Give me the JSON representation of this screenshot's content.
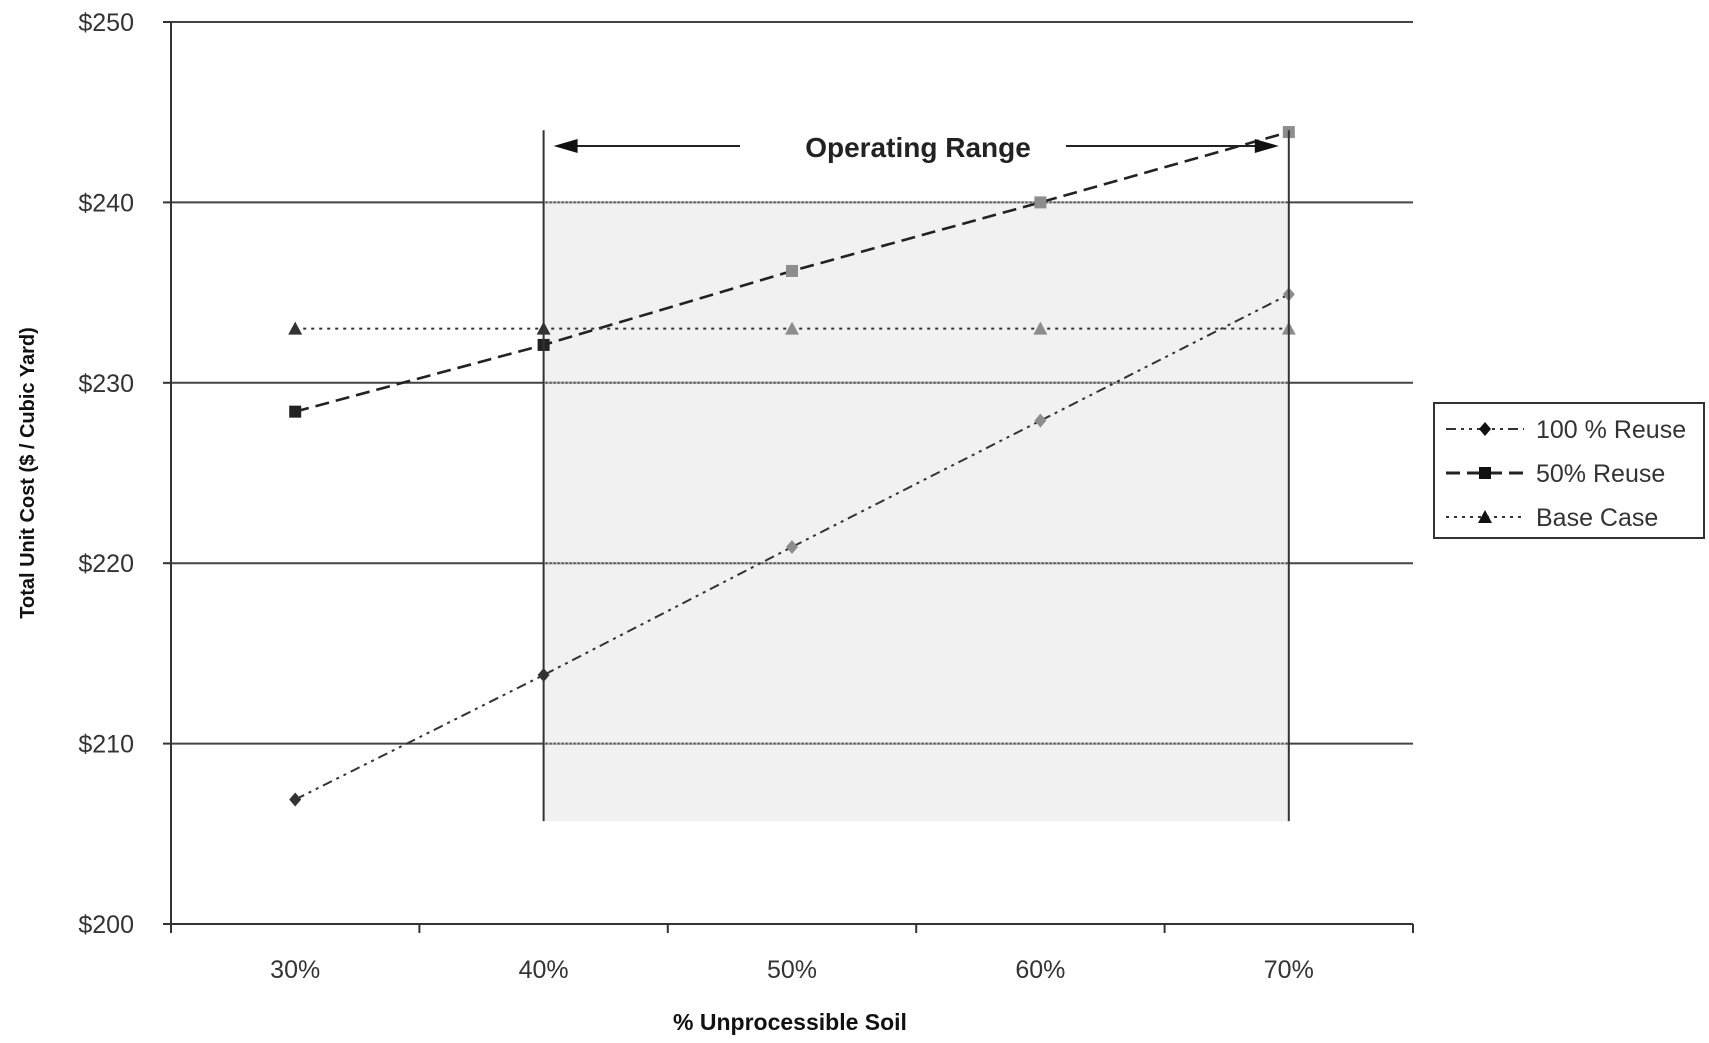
{
  "chart_data": {
    "type": "line",
    "title": "",
    "xlabel": "% Unprocessible Soil",
    "ylabel": "Total Unit Cost ($ / Cubic Yard)",
    "x": [
      30,
      40,
      50,
      60,
      70
    ],
    "x_tick_labels": [
      "30%",
      "40%",
      "50%",
      "60%",
      "70%"
    ],
    "xlim": [
      25,
      75
    ],
    "y_tick_values": [
      200,
      210,
      220,
      230,
      240,
      250
    ],
    "y_tick_labels": [
      "$200",
      "$210",
      "$220",
      "$230",
      "$240",
      "$250"
    ],
    "ylim": [
      200,
      250
    ],
    "grid": true,
    "legend_position": "right",
    "series": [
      {
        "name": "100 % Reuse",
        "values": [
          206.9,
          213.8,
          220.9,
          227.9,
          234.9
        ],
        "marker": "diamond",
        "dash": "dash-dot-dot",
        "color": "#333333"
      },
      {
        "name": "50% Reuse",
        "values": [
          228.4,
          232.1,
          236.2,
          240.0,
          243.9
        ],
        "marker": "square",
        "dash": "dash",
        "color": "#222222"
      },
      {
        "name": "Base Case",
        "values": [
          233.0,
          233.0,
          233.0,
          233.0,
          233.0
        ],
        "marker": "triangle",
        "dash": "dot",
        "color": "#333333"
      }
    ],
    "annotation": {
      "label": "Operating Range",
      "x_range": [
        40,
        70
      ],
      "y_range": [
        205.7,
        240
      ],
      "top_y": 244,
      "fill": "#f1f1f1"
    }
  }
}
